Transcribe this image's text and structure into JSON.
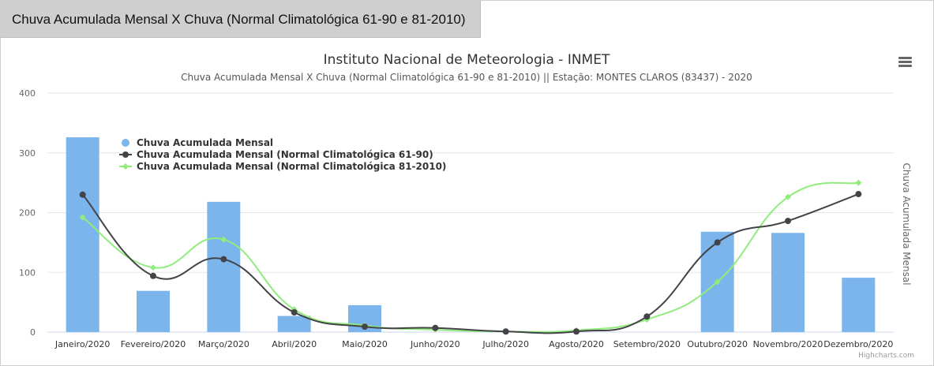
{
  "tab": {
    "label": "Chuva Acumulada Mensal X Chuva (Normal Climatológica 61-90 e 81-2010)"
  },
  "credits": "Highcharts.com",
  "colors": {
    "bar": "#7cb5ec",
    "normal_6190": "#434348",
    "normal_812010": "#90ed7d",
    "grid": "#e6e6e6"
  },
  "icons": {
    "menu": "hamburger-menu-icon"
  },
  "chart_data": {
    "type": "bar",
    "title": "Instituto Nacional de Meteorologia - INMET",
    "subtitle": "Chuva Acumulada Mensal X Chuva (Normal Climatológica 61-90 e 81-2010) || Estação: MONTES CLAROS (83437) - 2020",
    "ylabel": "Chuva Acumulada Mensal",
    "ylim": [
      0,
      400
    ],
    "yticks": [
      0,
      100,
      200,
      300,
      400
    ],
    "grid": true,
    "legend_position": "top-left",
    "categories": [
      "Janeiro/2020",
      "Fevereiro/2020",
      "Março/2020",
      "Abril/2020",
      "Maio/2020",
      "Junho/2020",
      "Julho/2020",
      "Agosto/2020",
      "Setembro/2020",
      "Outubro/2020",
      "Novembro/2020",
      "Dezembro/2020"
    ],
    "series": [
      {
        "name": "Chuva Acumulada Mensal",
        "kind": "bar",
        "values": [
          326,
          69,
          218,
          27,
          45,
          0,
          0,
          0,
          0,
          168,
          166,
          91
        ]
      },
      {
        "name": "Chuva Acumulada Mensal (Normal Climatológica 61-90)",
        "kind": "spline",
        "values": [
          230,
          94,
          122,
          33,
          9,
          7,
          1,
          1,
          26,
          150,
          186,
          231
        ]
      },
      {
        "name": "Chuva Acumulada Mensal (Normal Climatológica 81-2010)",
        "kind": "spline",
        "values": [
          192,
          108,
          155,
          38,
          11,
          4,
          1,
          3,
          21,
          84,
          226,
          250
        ]
      }
    ]
  }
}
